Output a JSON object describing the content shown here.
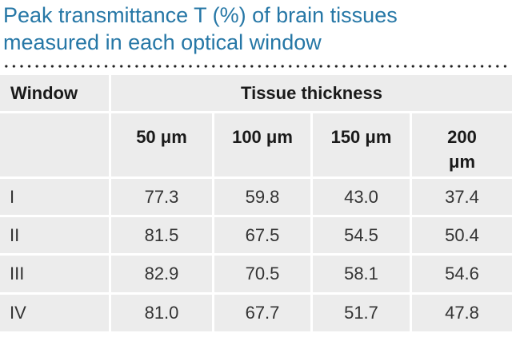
{
  "title": {
    "line1": "Peak transmittance T (%) of brain tissues",
    "line2": "measured in each optical window"
  },
  "table": {
    "window_header": "Window",
    "group_header": "Tissue thickness",
    "columns": [
      "50 μm",
      "100 μm",
      "150 μm",
      "200\nμm"
    ],
    "rows": [
      {
        "window": "I",
        "values": [
          "77.3",
          "59.8",
          "43.0",
          "37.4"
        ]
      },
      {
        "window": "II",
        "values": [
          "81.5",
          "67.5",
          "54.5",
          "50.4"
        ]
      },
      {
        "window": "III",
        "values": [
          "82.9",
          "70.5",
          "58.1",
          "54.6"
        ]
      },
      {
        "window": "IV",
        "values": [
          "81.0",
          "67.7",
          "51.7",
          "47.8"
        ]
      }
    ]
  },
  "colors": {
    "title": "#2677a6",
    "cell_background": "#ececec",
    "grid_lines": "#ffffff"
  }
}
